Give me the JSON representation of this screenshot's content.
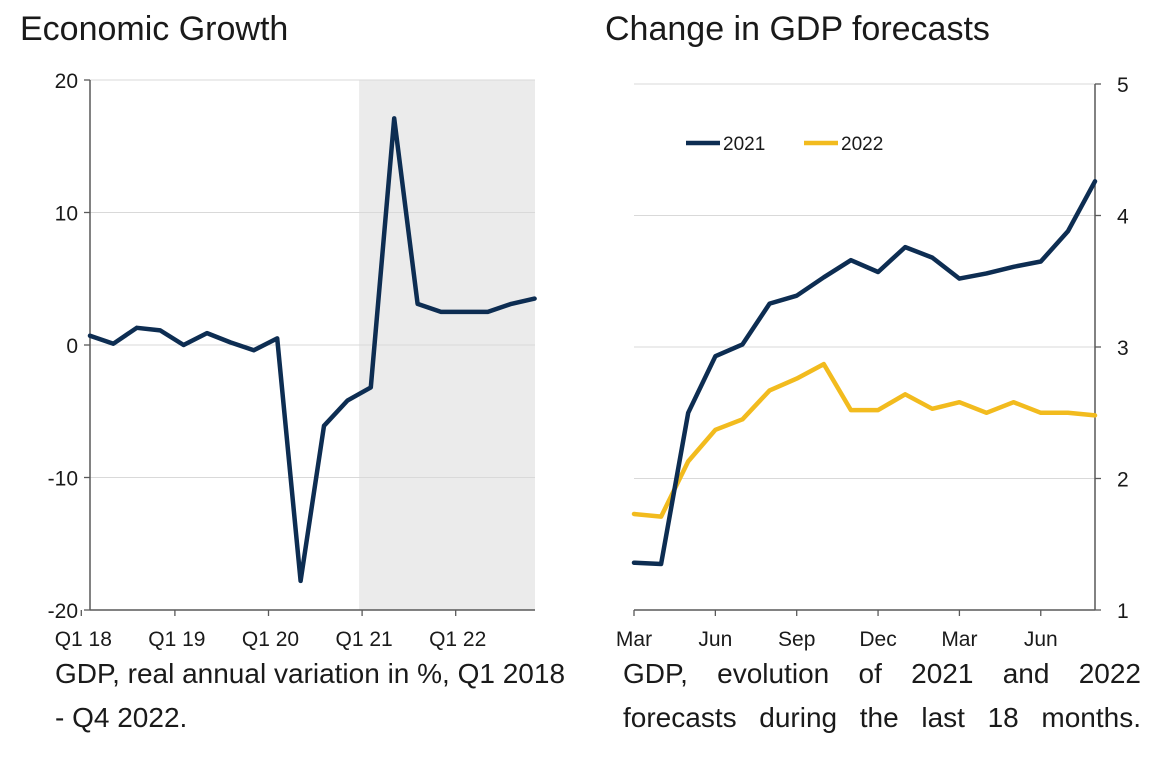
{
  "colors": {
    "series_2021": "#0d2d52",
    "series_2022": "#f2bb1e",
    "shade": "#ebebeb",
    "grid": "#d9d9d9",
    "axis": "#595959"
  },
  "chart_data": [
    {
      "type": "line",
      "title": "Economic Growth",
      "caption": "GDP, real annual variation in %, Q1 2018 - Q4 2022.",
      "xlabel": "",
      "ylabel": "",
      "ylim": [
        -20,
        20
      ],
      "yticks": [
        20,
        10,
        0,
        -10,
        -20
      ],
      "x_tick_labels": [
        "Q1 18",
        "Q1 19",
        "Q1 20",
        "Q1 21",
        "Q1 22"
      ],
      "x_tick_index": [
        0,
        4,
        8,
        12,
        16
      ],
      "shaded_from_index": 12,
      "grid": true,
      "series": [
        {
          "values": [
            0.7,
            0.1,
            1.3,
            1.1,
            0.0,
            0.9,
            0.2,
            -0.4,
            0.5,
            -17.8,
            -6.1,
            -4.2,
            -3.2,
            17.1,
            3.1,
            2.5,
            2.5,
            2.5,
            3.1,
            3.5
          ]
        }
      ]
    },
    {
      "type": "line",
      "title": "Change in GDP forecasts",
      "caption": "GDP, evolution of 2021 and 2022 forecasts during the last 18 months.",
      "xlabel": "",
      "ylabel": "",
      "ylim": [
        1,
        5
      ],
      "yticks": [
        5,
        4,
        3,
        2,
        1
      ],
      "y_axis_side": "right",
      "x_tick_labels": [
        "Mar",
        "Jun",
        "Sep",
        "Dec",
        "Mar",
        "Jun"
      ],
      "x_tick_index": [
        0,
        3,
        6,
        9,
        12,
        15
      ],
      "grid": true,
      "legend": "top-left",
      "series": [
        {
          "name": "2021",
          "values": [
            1.36,
            1.35,
            2.5,
            2.93,
            3.02,
            3.33,
            3.39,
            3.53,
            3.66,
            3.57,
            3.76,
            3.68,
            3.52,
            3.56,
            3.61,
            3.65,
            3.88,
            4.26
          ]
        },
        {
          "name": "2022",
          "values": [
            1.73,
            1.71,
            2.13,
            2.37,
            2.45,
            2.67,
            2.76,
            2.87,
            2.52,
            2.52,
            2.64,
            2.53,
            2.58,
            2.5,
            2.58,
            2.5,
            2.5,
            2.48
          ]
        }
      ]
    }
  ]
}
